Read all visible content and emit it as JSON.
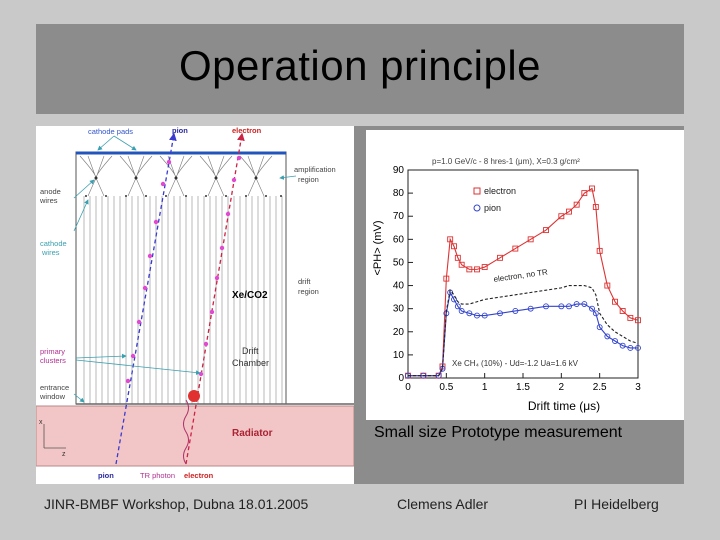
{
  "slide": {
    "title": "Operation principle",
    "caption": "Small size Prototype  measurement"
  },
  "diagram": {
    "labels": {
      "cathode_pads": "cathode pads",
      "pion_top": "pion",
      "electron_top": "electron",
      "amplification_region": "amplification region",
      "anode_wires": "anode wires",
      "cathode_wires": "cathode wires",
      "gas": "Xe/CO2",
      "drift_region": "drift region",
      "drift_chamber": "Drift Chamber",
      "primary_clusters": "primary clusters",
      "entrance_window": "entrance window",
      "radiator": "Radiator",
      "pion_bottom": "pion",
      "tr_photon": "TR photon",
      "electron_bottom": "electron",
      "axis_x": "x",
      "axis_z": "z"
    },
    "colors": {
      "cathode_pads_label": "#3355cc",
      "pion_label": "#2a2aa0",
      "electron_label": "#cc2222",
      "arrow": "#3aa0b0",
      "primary_label": "#b03090",
      "radiator_fill": "#f2c6c6",
      "pion_track": "#3a3ad0",
      "electron_track": "#cc2244",
      "cluster": "#e04ad0"
    }
  },
  "chart_data": {
    "type": "line",
    "title": "",
    "annotation_top": "p=1.0 GeV/c - 8 hres-1 (μm), X=0.3 g/cm²",
    "annotation_bottom": "Xe CH₄ (10%) - Ud=-1.2  Ua=1.6 kV",
    "annotation_curve": "electron, no TR",
    "xlabel": "Drift time (μs)",
    "ylabel": "<PH> (mV)",
    "xlim": [
      0,
      3
    ],
    "ylim": [
      0,
      90
    ],
    "xticks": [
      "0",
      "0.5",
      "1",
      "1.5",
      "2",
      "2.5",
      "3"
    ],
    "yticks": [
      "0",
      "10",
      "20",
      "30",
      "40",
      "50",
      "60",
      "70",
      "80",
      "90"
    ],
    "legend": [
      "electron",
      "pion"
    ],
    "x": [
      0,
      0.2,
      0.4,
      0.45,
      0.5,
      0.55,
      0.6,
      0.65,
      0.7,
      0.8,
      0.9,
      1.0,
      1.2,
      1.4,
      1.6,
      1.8,
      2.0,
      2.1,
      2.2,
      2.3,
      2.4,
      2.45,
      2.5,
      2.6,
      2.7,
      2.8,
      2.9,
      3.0
    ],
    "series": [
      {
        "name": "electron",
        "color": "#dd3333",
        "values": [
          1,
          1,
          1,
          5,
          43,
          60,
          57,
          52,
          49,
          47,
          47,
          48,
          52,
          56,
          60,
          64,
          70,
          72,
          75,
          80,
          82,
          74,
          55,
          40,
          33,
          29,
          26,
          25
        ]
      },
      {
        "name": "pion",
        "color": "#3344cc",
        "values": [
          1,
          1,
          1,
          4,
          28,
          37,
          34,
          31,
          29,
          28,
          27,
          27,
          28,
          29,
          30,
          31,
          31,
          31,
          32,
          32,
          30,
          28,
          22,
          18,
          16,
          14,
          13,
          13
        ]
      },
      {
        "name": "electron, no TR",
        "color": "#222222",
        "dashed": true,
        "values": [
          1,
          1,
          1,
          4,
          29,
          38,
          36,
          33,
          32,
          32,
          33,
          34,
          35,
          36,
          37,
          38,
          39,
          40,
          40,
          40,
          39,
          36,
          28,
          23,
          20,
          18,
          16,
          15
        ]
      }
    ]
  },
  "footer": {
    "left": "JINR-BMBF Workshop, Dubna 18.01.2005",
    "center": "Clemens Adler",
    "right": "PI Heidelberg"
  }
}
